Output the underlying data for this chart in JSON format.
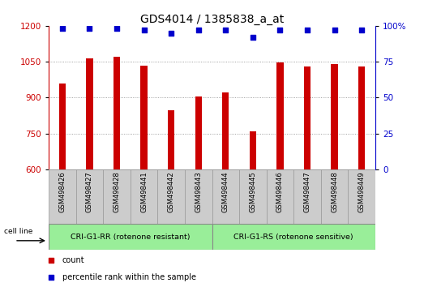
{
  "title": "GDS4014 / 1385838_a_at",
  "categories": [
    "GSM498426",
    "GSM498427",
    "GSM498428",
    "GSM498441",
    "GSM498442",
    "GSM498443",
    "GSM498444",
    "GSM498445",
    "GSM498446",
    "GSM498447",
    "GSM498448",
    "GSM498449"
  ],
  "bar_values": [
    960,
    1063,
    1072,
    1035,
    848,
    905,
    920,
    760,
    1048,
    1030,
    1040,
    1030
  ],
  "percentile_values": [
    98,
    98,
    98.5,
    97,
    95,
    97,
    97,
    92,
    97,
    97,
    97,
    97
  ],
  "bar_color": "#cc0000",
  "dot_color": "#0000cc",
  "ylim_left": [
    600,
    1200
  ],
  "ylim_right": [
    0,
    100
  ],
  "yticks_left": [
    600,
    750,
    900,
    1050,
    1200
  ],
  "yticks_right": [
    0,
    25,
    50,
    75,
    100
  ],
  "group1_count": 6,
  "group2_count": 6,
  "group1_label": "CRI-G1-RR (rotenone resistant)",
  "group2_label": "CRI-G1-RS (rotenone sensitive)",
  "group_bg_color": "#99ee99",
  "cell_line_label": "cell line",
  "legend_count_label": "count",
  "legend_percentile_label": "percentile rank within the sample",
  "title_fontsize": 10,
  "tick_fontsize": 7.5,
  "cat_fontsize": 6,
  "bar_width": 0.25,
  "grid_color": "#888888",
  "cat_bg_color": "#cccccc"
}
